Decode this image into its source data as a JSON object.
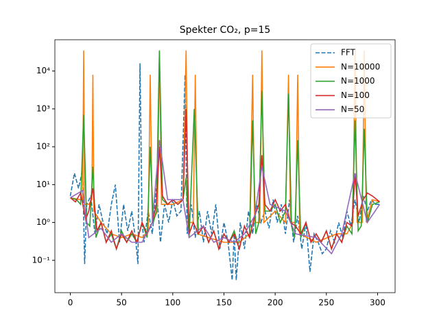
{
  "chart_data": {
    "type": "line",
    "title": "Spekter CO₂, p=15",
    "yscale": "log",
    "xlim": [
      -15.1,
      317.1
    ],
    "xticks": [
      0,
      50,
      100,
      150,
      200,
      250,
      300
    ],
    "ylim": [
      0.014,
      67000
    ],
    "yticks": [
      {
        "value": 0.1,
        "label": "10⁻¹"
      },
      {
        "value": 1,
        "label": "10⁰"
      },
      {
        "value": 10,
        "label": "10¹"
      },
      {
        "value": 100,
        "label": "10²"
      },
      {
        "value": 1000,
        "label": "10³"
      },
      {
        "value": 10000,
        "label": "10⁴"
      }
    ],
    "legend": "upper right",
    "series": [
      {
        "name": "FFT",
        "color": "#1f77b4",
        "dashed": true,
        "x": [
          0,
          4,
          8,
          12,
          14,
          16,
          20,
          24,
          28,
          32,
          36,
          40,
          44,
          48,
          52,
          56,
          60,
          64,
          66,
          68,
          70,
          72,
          76,
          80,
          84,
          88,
          92,
          96,
          100,
          104,
          108,
          112,
          114,
          118,
          122,
          126,
          130,
          134,
          138,
          142,
          146,
          150,
          154,
          158,
          160,
          162,
          166,
          170,
          174,
          178,
          182,
          186,
          190,
          194,
          198,
          202,
          206,
          210,
          214,
          218,
          222,
          226,
          230,
          234,
          238,
          242,
          246,
          250,
          254,
          258,
          262,
          266,
          270,
          274,
          278,
          282,
          286,
          290,
          294,
          298,
          302
        ],
        "values": [
          5,
          20,
          8,
          25,
          0.08,
          3,
          5,
          0.5,
          3,
          1,
          0.5,
          3,
          10,
          0.3,
          3,
          0.6,
          2,
          0.3,
          0.08,
          16000,
          1,
          0.3,
          2,
          0.5,
          8,
          0.3,
          3,
          1,
          4,
          1.5,
          2,
          8000,
          0.5,
          3,
          0.4,
          2,
          0.3,
          2,
          0.5,
          3,
          0.2,
          1,
          0.3,
          0.03,
          0.5,
          0.03,
          1,
          0.2,
          2,
          0.5,
          3,
          1,
          2,
          0.7,
          4,
          1,
          3,
          0.5,
          4,
          0.3,
          1.5,
          0.2,
          1,
          0.05,
          0.5,
          0.3,
          0.15,
          0.2,
          0.6,
          0.3,
          1,
          0.4,
          2,
          0.8,
          4,
          1,
          5,
          2,
          4,
          3,
          3
        ]
      },
      {
        "name": "N=10000",
        "color": "#ff7f0e",
        "dashed": false,
        "x": [
          0,
          10,
          12,
          13,
          14,
          18,
          21,
          22,
          23,
          30,
          40,
          50,
          60,
          70,
          76,
          78,
          80,
          85,
          87,
          89,
          100,
          110,
          113,
          115,
          120,
          122,
          124,
          135,
          150,
          165,
          175,
          178,
          180,
          185,
          187,
          189,
          200,
          210,
          213,
          215,
          220,
          222,
          224,
          240,
          260,
          270,
          276,
          278,
          280,
          285,
          287,
          289,
          295,
          302
        ],
        "values": [
          4.5,
          4,
          4,
          35000,
          3,
          3,
          4,
          8000,
          2,
          1,
          0.5,
          0.4,
          0.5,
          0.4,
          0.6,
          8000,
          1,
          2,
          35000,
          3,
          3,
          4,
          35000,
          1,
          1,
          8000,
          0.5,
          0.4,
          0.3,
          0.3,
          0.5,
          8000,
          1,
          1,
          35000,
          1,
          2,
          1,
          8000,
          1,
          1,
          8000,
          0.5,
          0.3,
          0.5,
          0.5,
          1,
          35000,
          1,
          1,
          35000,
          1,
          4,
          3.5
        ]
      },
      {
        "name": "N=1000",
        "color": "#2ca02c",
        "dashed": false,
        "x": [
          0,
          6,
          10,
          13,
          16,
          19,
          22,
          25,
          30,
          35,
          40,
          45,
          50,
          55,
          60,
          65,
          70,
          75,
          78,
          81,
          84,
          87,
          90,
          95,
          100,
          105,
          110,
          113,
          116,
          121,
          125,
          130,
          135,
          140,
          145,
          150,
          155,
          160,
          165,
          170,
          175,
          178,
          181,
          184,
          187,
          190,
          195,
          200,
          205,
          210,
          213,
          216,
          219,
          222,
          225,
          230,
          235,
          240,
          245,
          250,
          255,
          260,
          265,
          270,
          275,
          278,
          281,
          284,
          287,
          290,
          295,
          302
        ],
        "values": [
          4.5,
          4,
          3,
          700,
          1,
          0.8,
          30,
          0.4,
          1,
          0.3,
          0.5,
          0.2,
          0.6,
          0.3,
          0.5,
          0.3,
          1,
          0.4,
          100,
          1,
          2,
          35000,
          4,
          3,
          4,
          3,
          4,
          15,
          0.4,
          1000,
          0.5,
          0.8,
          0.3,
          0.6,
          0.2,
          0.5,
          0.3,
          0.6,
          0.2,
          0.8,
          0.4,
          500,
          0.5,
          1,
          3000,
          2,
          2,
          3,
          1,
          2,
          2500,
          0.8,
          0.4,
          150,
          0.4,
          1,
          0.3,
          0.5,
          0.3,
          0.6,
          0.2,
          0.5,
          0.3,
          0.8,
          0.5,
          500,
          0.6,
          0.8,
          300,
          1,
          3,
          3.5
        ]
      },
      {
        "name": "N=100",
        "color": "#d62728",
        "dashed": false,
        "x": [
          0,
          5,
          10,
          15,
          18,
          22,
          26,
          30,
          35,
          40,
          45,
          50,
          55,
          60,
          65,
          70,
          75,
          80,
          84,
          87,
          90,
          95,
          100,
          105,
          110,
          113,
          116,
          120,
          125,
          130,
          135,
          140,
          145,
          150,
          155,
          160,
          165,
          170,
          175,
          180,
          184,
          187,
          190,
          195,
          200,
          205,
          210,
          215,
          220,
          225,
          230,
          235,
          240,
          245,
          250,
          255,
          260,
          265,
          270,
          275,
          278,
          281,
          286,
          290,
          295,
          302
        ],
        "values": [
          4.5,
          3.5,
          6,
          1.2,
          2,
          8,
          0.6,
          1,
          0.3,
          0.6,
          0.2,
          0.5,
          0.3,
          0.6,
          0.3,
          1,
          0.5,
          1,
          3,
          100,
          5,
          3,
          4,
          3,
          4,
          1000,
          0.5,
          1,
          0.5,
          0.8,
          0.3,
          0.6,
          0.2,
          0.5,
          0.3,
          0.5,
          0.2,
          0.8,
          0.4,
          1.5,
          3,
          60,
          3,
          2,
          4,
          2,
          3,
          1,
          0.8,
          0.5,
          1,
          0.3,
          0.5,
          0.3,
          0.6,
          0.2,
          0.5,
          0.3,
          1,
          0.8,
          20,
          1.5,
          4,
          6,
          5,
          3.5
        ]
      },
      {
        "name": "N=50",
        "color": "#9467bd",
        "dashed": false,
        "x": [
          0,
          12,
          18,
          30,
          40,
          50,
          60,
          70,
          80,
          87,
          95,
          110,
          116,
          130,
          140,
          150,
          160,
          170,
          180,
          187,
          195,
          210,
          220,
          240,
          255,
          265,
          278,
          290,
          302
        ],
        "values": [
          4.5,
          7,
          0.4,
          0.7,
          0.3,
          0.5,
          0.3,
          0.3,
          1,
          150,
          4,
          4,
          0.4,
          0.8,
          0.3,
          0.4,
          0.3,
          0.5,
          1.5,
          30,
          3,
          2,
          0.5,
          0.4,
          0.15,
          0.5,
          20,
          1,
          3
        ]
      }
    ]
  }
}
